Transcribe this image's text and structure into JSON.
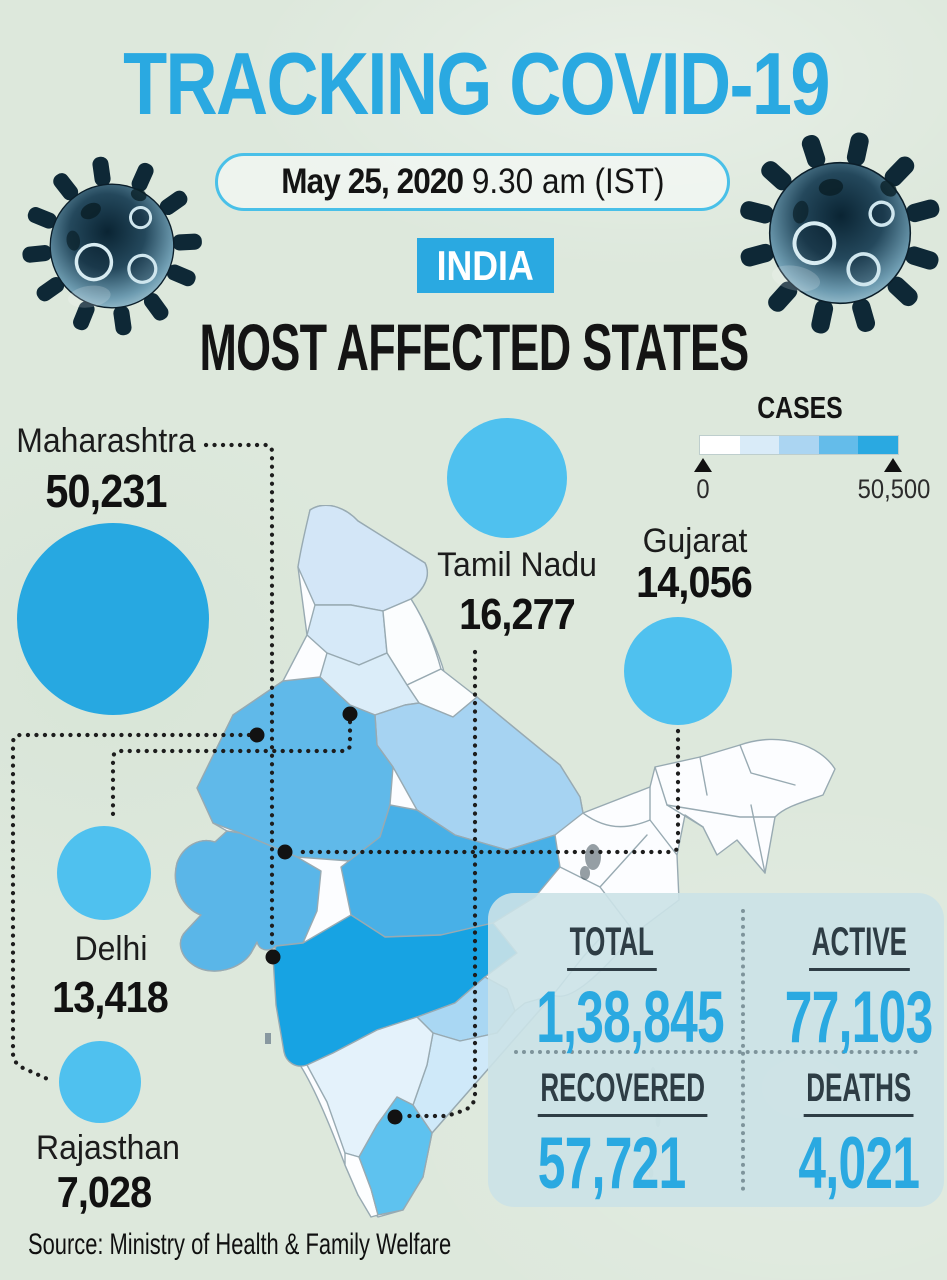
{
  "header": {
    "title": "TRACKING COVID-19",
    "date": "May 25, 2020",
    "time": " 9.30 am (IST)",
    "country": "INDIA",
    "subtitle": "MOST AFFECTED STATES"
  },
  "legend": {
    "title": "CASES",
    "min": "0",
    "max": "50,500",
    "colors": [
      "#ffffff",
      "#d9ebf8",
      "#abd5f2",
      "#64bcea",
      "#2aa9e1"
    ]
  },
  "states": [
    {
      "name": "Maharashtra",
      "cases": "50,231"
    },
    {
      "name": "Tamil Nadu",
      "cases": "16,277"
    },
    {
      "name": "Gujarat",
      "cases": "14,056"
    },
    {
      "name": "Delhi",
      "cases": "13,418"
    },
    {
      "name": "Rajasthan",
      "cases": "7,028"
    }
  ],
  "stats": {
    "total_label": "TOTAL",
    "total_value": "1,38,845",
    "active_label": "ACTIVE",
    "active_value": "77,103",
    "recovered_label": "RECOVERED",
    "recovered_value": "57,721",
    "deaths_label": "DEATHS",
    "deaths_value": "4,021"
  },
  "source": "Source: Ministry of Health & Family Welfare",
  "colors": {
    "accent": "#2aa9e1",
    "bubble": "#4fc1ef",
    "bubble_max": "#27a8e1",
    "panel": "#cbe2e7"
  },
  "chart_data": {
    "type": "map-bubble",
    "title": "TRACKING COVID-19",
    "region": "INDIA",
    "subtitle": "MOST AFFECTED STATES",
    "as_of": "May 25, 2020 9.30 am (IST)",
    "categories": [
      "Maharashtra",
      "Tamil Nadu",
      "Gujarat",
      "Delhi",
      "Rajasthan"
    ],
    "values": [
      50231,
      16277,
      14056,
      13418,
      7028
    ],
    "legend": {
      "label": "CASES",
      "min": 0,
      "max": 50500
    },
    "summary": {
      "total": 138845,
      "active": 77103,
      "recovered": 57721,
      "deaths": 4021
    },
    "source": "Ministry of Health & Family Welfare"
  }
}
